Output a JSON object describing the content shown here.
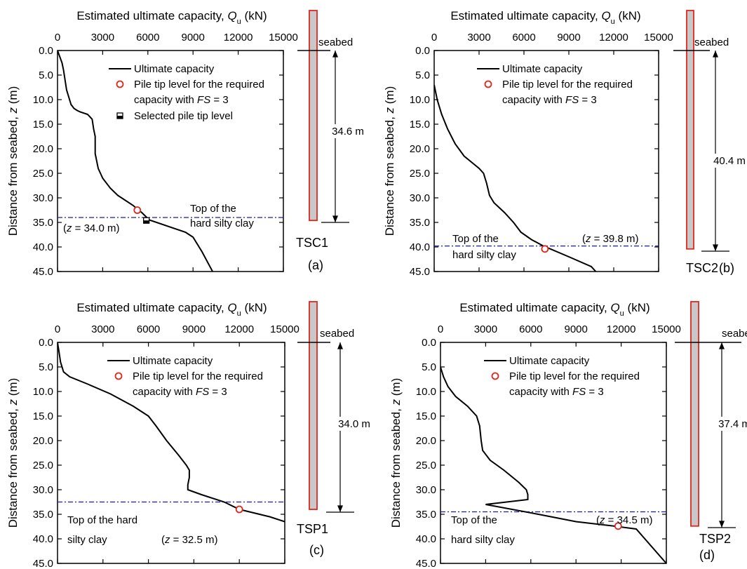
{
  "x_axis_title_main": "Estimated ultimate capacity, ",
  "x_axis_title_sym": "Q",
  "x_axis_title_sub": "u",
  "x_axis_title_unit": " (kN)",
  "y_axis_title_main": "Distance from seabed, ",
  "y_axis_title_sym": "z",
  "y_axis_title_unit": " (m)",
  "x_ticks": [
    "0",
    "3000",
    "6000",
    "9000",
    "12000",
    "15000"
  ],
  "y_ticks": [
    "0.0",
    "5.0",
    "10.0",
    "15.0",
    "20.0",
    "25.0",
    "30.0",
    "35.0",
    "40.0",
    "45.0"
  ],
  "seabed_label": "seabed",
  "legend_ultimate": "Ultimate capacity",
  "legend_tip_line1": "Pile tip level for the required",
  "legend_tip_line2_pre": "capacity with ",
  "legend_tip_line2_fs": "FS",
  "legend_tip_line2_post": " = 3",
  "legend_selected": "Selected pile tip level",
  "colors": {
    "curve": "#000000",
    "marker": "#e0261f",
    "clay_line": "#1a1aa8",
    "pile_fill": "#c8c8c8",
    "pile_border": "#e0261f"
  },
  "chart_data": [
    {
      "type": "line",
      "panel": "(a)",
      "pile_name": "TSC1",
      "pile_length": "34.6 m",
      "pile_tip_z": 34.6,
      "xlim": [
        0,
        15000
      ],
      "ylim": [
        0,
        45
      ],
      "series": [
        {
          "name": "Ultimate capacity",
          "x": [
            0,
            300,
            400,
            600,
            900,
            1100,
            1300,
            1500,
            2000,
            2300,
            2400,
            2500,
            2500,
            2700,
            3000,
            3500,
            4000,
            4500,
            5000,
            5600,
            6100,
            8500,
            9000,
            9600,
            10300
          ],
          "y": [
            0,
            2.5,
            4,
            8,
            11,
            11.8,
            12.2,
            12.5,
            13,
            14,
            16,
            17.5,
            21,
            24,
            26,
            28,
            29.5,
            30.5,
            31.5,
            33,
            34.5,
            37,
            38,
            41,
            45
          ]
        }
      ],
      "required_tip": {
        "q": 5300,
        "z": 32.5
      },
      "selected_tip": {
        "q": 5900,
        "z": 34.6
      },
      "hard_clay_z": 34.0,
      "hard_clay_label_1": "Top of the",
      "hard_clay_label_2": "hard silty clay",
      "z_label_pre": "(",
      "z_label_sym": "z",
      "z_label_post": " = 34.0 m)"
    },
    {
      "type": "line",
      "panel": "(b)",
      "pile_name": "TSC2",
      "pile_length": "40.4 m",
      "pile_tip_z": 40.4,
      "xlim": [
        0,
        15000
      ],
      "ylim": [
        0,
        45
      ],
      "series": [
        {
          "name": "Ultimate capacity",
          "x": [
            0,
            200,
            500,
            900,
            1400,
            2000,
            2600,
            3000,
            3300,
            3500,
            3700,
            4000,
            4700,
            5300,
            5800,
            6500,
            7300,
            9000,
            10500,
            10800
          ],
          "y": [
            7,
            10,
            13,
            16,
            19,
            21.5,
            23,
            24,
            25,
            27,
            29.5,
            31,
            33,
            35,
            37,
            38.5,
            39.8,
            42,
            44,
            45
          ]
        }
      ],
      "required_tip": {
        "q": 7400,
        "z": 40.4
      },
      "hard_clay_z": 39.8,
      "hard_clay_label_1": "Top of the",
      "hard_clay_label_2": "hard silty clay",
      "z_label_pre": "(",
      "z_label_sym": "z",
      "z_label_post": " = 39.8 m)"
    },
    {
      "type": "line",
      "panel": "(c)",
      "pile_name": "TSP1",
      "pile_length": "34.0 m",
      "pile_tip_z": 34.0,
      "xlim": [
        0,
        15000
      ],
      "ylim": [
        0,
        45
      ],
      "series": [
        {
          "name": "Ultimate capacity",
          "x": [
            0,
            100,
            200,
            400,
            800,
            2000,
            3500,
            5000,
            6000,
            6500,
            7200,
            8000,
            8500,
            8700,
            8700,
            8600,
            8600,
            9500,
            11000,
            12000,
            14000,
            15000
          ],
          "y": [
            0,
            2,
            4,
            6,
            7,
            8.5,
            10.5,
            13,
            15,
            17,
            20,
            23,
            25,
            26,
            27.5,
            29,
            30,
            31,
            32.5,
            34,
            35.5,
            36.5
          ]
        }
      ],
      "required_tip": {
        "q": 12000,
        "z": 34.0
      },
      "hard_clay_z": 32.5,
      "hard_clay_label_1": "Top of the hard",
      "hard_clay_label_2": "silty clay",
      "z_label_pre": "(",
      "z_label_sym": "z",
      "z_label_post": " = 32.5 m)"
    },
    {
      "type": "line",
      "panel": "(d)",
      "pile_name": "TSP2",
      "pile_length": "37.4 m",
      "pile_tip_z": 37.4,
      "xlim": [
        0,
        15000
      ],
      "ylim": [
        0,
        45
      ],
      "series": [
        {
          "name": "Ultimate capacity",
          "x": [
            0,
            200,
            500,
            1000,
            1800,
            2400,
            2600,
            2700,
            2800,
            3300,
            4200,
            5200,
            5700,
            5800,
            5800,
            3000,
            6500,
            9000,
            11500,
            13000,
            15000
          ],
          "y": [
            5,
            7,
            9,
            11,
            13,
            15,
            17,
            20,
            22,
            24,
            26,
            28.5,
            30,
            31,
            32,
            33,
            35,
            36.5,
            37.4,
            38,
            45
          ]
        }
      ],
      "required_tip": {
        "q": 11800,
        "z": 37.4
      },
      "hard_clay_z": 34.5,
      "hard_clay_label_1": "Top of the",
      "hard_clay_label_2": "hard silty clay",
      "z_label_pre": "(",
      "z_label_sym": "z",
      "z_label_post": " = 34.5 m)"
    }
  ]
}
